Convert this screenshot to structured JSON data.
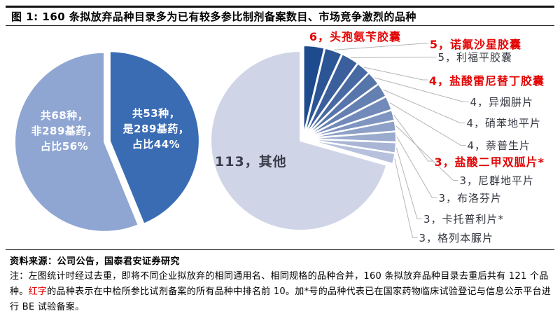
{
  "figure": {
    "title": "图 1: 160 条拟放弃品种目录多为已有较多参比制剂备案数目、市场竞争激烈的品种",
    "source": "资料来源：公司公告，国泰君安证券研究",
    "note_part1": "注：左图统计时经过去重，即将不同企业拟放弃的相同通用名、相同规格的品种合并，160 条拟放弃品种目录去重后共有 121 个品种。",
    "note_red_word": "红字",
    "note_part2": "的品种表示在中检所参比试剂备案的所有品种中排名前 10。加*号的品种代表已在国家药物临床试验登记与信息公示平台进行 BE 试验备案。"
  },
  "chart_data": [
    {
      "type": "pie",
      "position": "left",
      "total": 121,
      "slices": [
        {
          "name": "是289基药",
          "value": 53,
          "share": "44%",
          "label": "共53种，\n是289基药，\n占比44%",
          "color": "#3A6CB4"
        },
        {
          "name": "非289基药",
          "value": 68,
          "share": "56%",
          "label": "共68种，\n非289基药，\n占比56%",
          "color": "#8FA6D3"
        }
      ]
    },
    {
      "type": "pie",
      "position": "right",
      "total": 160,
      "slices": [
        {
          "value": 6,
          "name": "头孢氨苄胶囊",
          "label": "6，头孢氨苄胶囊",
          "red": true
        },
        {
          "value": 5,
          "name": "诺氟沙星胶囊",
          "label": "5，诺氟沙星胶囊",
          "red": true
        },
        {
          "value": 5,
          "name": "利福平胶囊",
          "label": "5，利福平胶囊",
          "red": false
        },
        {
          "value": 4,
          "name": "盐酸雷尼替丁胶囊",
          "label": "4，盐酸雷尼替丁胶囊",
          "red": true
        },
        {
          "value": 4,
          "name": "异烟肼片",
          "label": "4，异烟肼片",
          "red": false
        },
        {
          "value": 4,
          "name": "硝苯地平片",
          "label": "4，硝苯地平片",
          "red": false
        },
        {
          "value": 4,
          "name": "萘普生片",
          "label": "4，萘普生片",
          "red": false
        },
        {
          "value": 3,
          "name": "盐酸二甲双胍片*",
          "label": "3，盐酸二甲双胍片*",
          "red": true
        },
        {
          "value": 3,
          "name": "尼群地平片",
          "label": "3，尼群地平片",
          "red": false
        },
        {
          "value": 3,
          "name": "布洛芬片",
          "label": "3，布洛芬片",
          "red": false
        },
        {
          "value": 3,
          "name": "卡托普利片*",
          "label": "3，卡托普利片*",
          "red": false
        },
        {
          "value": 3,
          "name": "格列本脲片",
          "label": "3，格列本脲片",
          "red": false
        }
      ],
      "other": {
        "value": 113,
        "name": "其他",
        "label": "113，其他",
        "color": "#D0D4E7"
      },
      "color_scale": {
        "start": "#1E4A8E",
        "end": "#B7C0DC"
      },
      "leader_line_color": "#b5b5b5",
      "red_label_color": "#E30505"
    }
  ]
}
